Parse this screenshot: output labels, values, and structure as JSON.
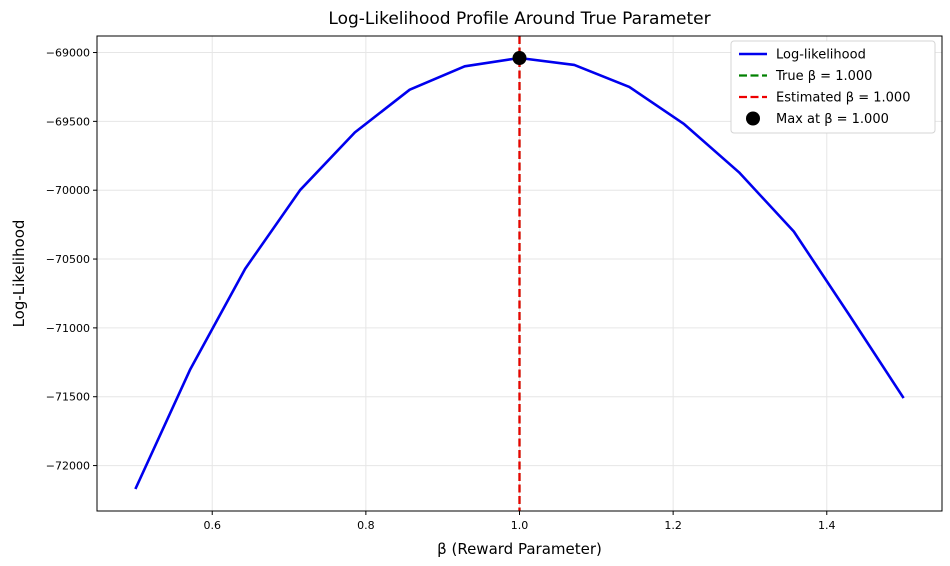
{
  "chart_data": {
    "type": "line",
    "title": "Log-Likelihood Profile Around True Parameter",
    "xlabel": "β (Reward Parameter)",
    "ylabel": "Log-Likelihood",
    "xlim": [
      0.45,
      1.55
    ],
    "ylim": [
      -72330,
      -68880
    ],
    "xticks": [
      0.6,
      0.8,
      1.0,
      1.2,
      1.4
    ],
    "xtick_labels": [
      "0.6",
      "0.8",
      "1.0",
      "1.2",
      "1.4"
    ],
    "yticks": [
      -69000,
      -69500,
      -70000,
      -70500,
      -71000,
      -71500,
      -72000
    ],
    "ytick_labels": [
      "−69000",
      "−69500",
      "−70000",
      "−70500",
      "−71000",
      "−71500",
      "−72000"
    ],
    "grid": true,
    "legend_position": "top-right",
    "series": [
      {
        "name": "Log-likelihood",
        "color": "#0000ee",
        "x": [
          0.5,
          0.5714,
          0.6429,
          0.7143,
          0.7857,
          0.8571,
          0.9286,
          1.0,
          1.0714,
          1.1429,
          1.2143,
          1.2857,
          1.3571,
          1.4286,
          1.5
        ],
        "y": [
          -72170,
          -71300,
          -70570,
          -70000,
          -69580,
          -69270,
          -69100,
          -69040,
          -69090,
          -69250,
          -69520,
          -69870,
          -70300,
          -70900,
          -71510
        ]
      }
    ],
    "vlines": [
      {
        "name": "True β = 1.000",
        "x": 1.0,
        "color": "#008000"
      },
      {
        "name": "Estimated β = 1.000",
        "x": 1.0,
        "color": "#ee0000"
      }
    ],
    "marker": {
      "name": "Max at β = 1.000",
      "x": 1.0,
      "y": -69040,
      "color": "#000000"
    }
  }
}
